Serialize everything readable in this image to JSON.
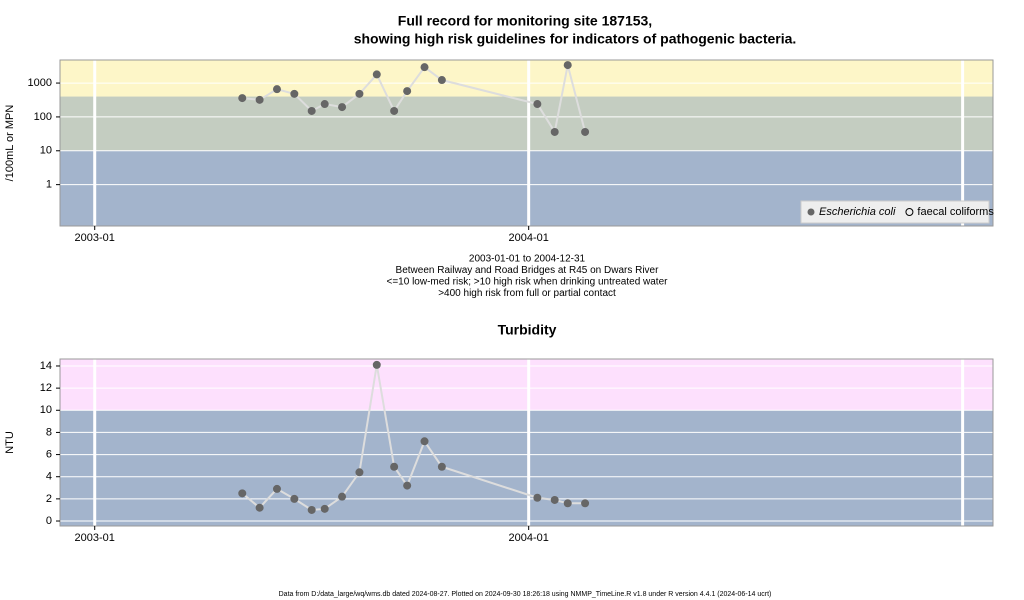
{
  "chart_data": [
    {
      "type": "line",
      "title": [
        "Full record for monitoring site 187153,",
        "showing high risk guidelines for indicators of pathogenic bacteria."
      ],
      "ylabel": "/100mL or MPN",
      "notes": [
        "2003-01-01 to 2004-12-31",
        "Between Railway and Road Bridges at R45 on Dwars River",
        "<=10 low-med risk; >10 high risk when drinking untreated water",
        ">400 high risk from full or partial contact"
      ],
      "x": [
        2003.34,
        2003.38,
        2003.42,
        2003.46,
        2003.5,
        2003.53,
        2003.57,
        2003.61,
        2003.65,
        2003.69,
        2003.72,
        2003.76,
        2003.8,
        2004.02,
        2004.06,
        2004.09,
        2004.13
      ],
      "series": [
        {
          "name": "Escherichia coli",
          "color": "#666666",
          "line_color": "#dddddd",
          "marker": "filled",
          "values": [
            360,
            320,
            660,
            480,
            150,
            240,
            195,
            480,
            1800,
            150,
            580,
            2950,
            1230,
            240,
            36,
            3400,
            36
          ]
        },
        {
          "name": "faecal coliforms",
          "color": "#000000",
          "marker": "open",
          "values": [
            null,
            null,
            null,
            null,
            null,
            null,
            null,
            null,
            null,
            null,
            null,
            null,
            null,
            null,
            null,
            null,
            null
          ]
        }
      ],
      "xlim": [
        2002.92,
        2005.07
      ],
      "xticks": [
        {
          "value": 2003,
          "label": "2003-01"
        },
        {
          "value": 2004,
          "label": "2004-01"
        }
      ],
      "xgrid": [
        2003,
        2004,
        2005
      ],
      "ylim": [
        0.06,
        4800
      ],
      "log_y": true,
      "yticks": [
        1,
        10,
        100,
        1000
      ],
      "thresholds": [
        10,
        400
      ],
      "band_colors": [
        "#a3b4cc",
        "#c4cdc1",
        "#fdf6c8"
      ],
      "grid": true,
      "legend": "bottom-right"
    },
    {
      "type": "line",
      "title": [
        "Turbidity"
      ],
      "ylabel": "NTU",
      "x": [
        2003.34,
        2003.38,
        2003.42,
        2003.46,
        2003.5,
        2003.53,
        2003.57,
        2003.61,
        2003.65,
        2003.69,
        2003.72,
        2003.76,
        2003.8,
        2004.02,
        2004.06,
        2004.09,
        2004.13
      ],
      "series": [
        {
          "color": "#666666",
          "line_color": "#dddddd",
          "marker": "filled",
          "values": [
            2.5,
            1.2,
            2.9,
            2.0,
            1.0,
            1.1,
            2.2,
            4.4,
            14.1,
            4.9,
            3.2,
            7.2,
            4.9,
            2.1,
            1.9,
            1.6,
            1.6
          ]
        }
      ],
      "xlim": [
        2002.92,
        2005.07
      ],
      "xticks": [
        {
          "value": 2003,
          "label": "2003-01"
        },
        {
          "value": 2004,
          "label": "2004-01"
        }
      ],
      "xgrid": [
        2003,
        2004,
        2005
      ],
      "ylim": [
        -0.45,
        14.63
      ],
      "log_y": false,
      "yticks": [
        0,
        2,
        4,
        6,
        8,
        10,
        12,
        14
      ],
      "thresholds": [
        10
      ],
      "band_colors": [
        "#a3b4cc",
        "#fde0fd"
      ],
      "grid": true
    }
  ],
  "footer": "Data from D:/data_large/wq/wms.db dated 2024-08-27. Plotted on 2024-09-30 18:26:18 using NMMP_TimeLine.R v1.8 under R version 4.4.1 (2024-06-14 ucrt)"
}
